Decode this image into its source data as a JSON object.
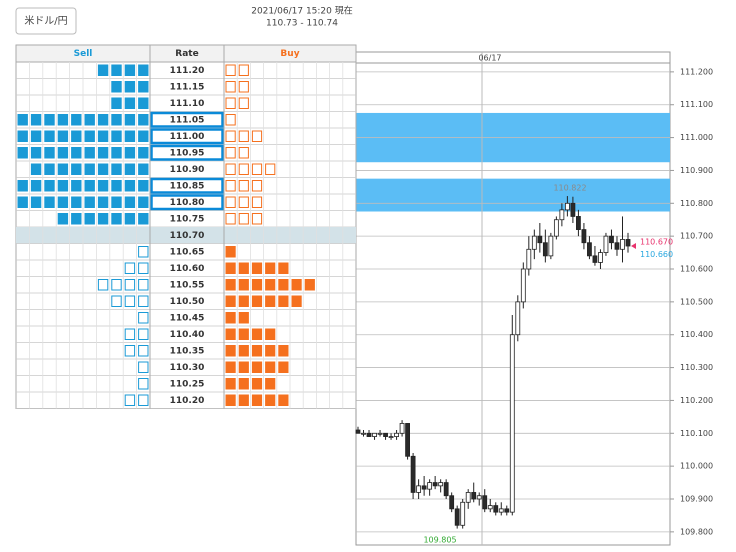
{
  "button": "米ドル/円",
  "header": {
    "timestamp": "2021/06/17 15:20 現在",
    "quote": "110.73 - 110.74"
  },
  "table": {
    "columns": [
      "Sell",
      "Rate",
      "Buy"
    ],
    "sell_color": "#1a9ad6",
    "buy_color": "#f5701e",
    "highlight_color": "#0a8ad8",
    "current_color": "#d3e2e8",
    "rows": [
      {
        "rate": "111.20",
        "sell": 4,
        "buy": 2,
        "highlight": false,
        "current": false
      },
      {
        "rate": "111.15",
        "sell": 3,
        "buy": 2,
        "highlight": false,
        "current": false
      },
      {
        "rate": "111.10",
        "sell": 3,
        "buy": 2,
        "highlight": false,
        "current": false
      },
      {
        "rate": "111.05",
        "sell": 10,
        "buy": 1,
        "highlight": true,
        "current": false
      },
      {
        "rate": "111.00",
        "sell": 10,
        "buy": 3,
        "highlight": true,
        "current": false
      },
      {
        "rate": "110.95",
        "sell": 10,
        "buy": 2,
        "highlight": true,
        "current": false
      },
      {
        "rate": "110.90",
        "sell": 9,
        "buy": 4,
        "highlight": false,
        "current": false
      },
      {
        "rate": "110.85",
        "sell": 10,
        "buy": 3,
        "highlight": true,
        "current": false
      },
      {
        "rate": "110.80",
        "sell": 10,
        "buy": 3,
        "highlight": true,
        "current": false
      },
      {
        "rate": "110.75",
        "sell": 7,
        "buy": 3,
        "highlight": false,
        "current": false
      },
      {
        "rate": "110.70",
        "sell": 0,
        "buy": 0,
        "highlight": false,
        "current": true
      },
      {
        "rate": "110.65",
        "sell": 1,
        "buy": 1,
        "highlight": false,
        "current": false
      },
      {
        "rate": "110.60",
        "sell": 2,
        "buy": 5,
        "highlight": false,
        "current": false
      },
      {
        "rate": "110.55",
        "sell": 4,
        "buy": 7,
        "highlight": false,
        "current": false
      },
      {
        "rate": "110.50",
        "sell": 3,
        "buy": 6,
        "highlight": false,
        "current": false
      },
      {
        "rate": "110.45",
        "sell": 1,
        "buy": 2,
        "highlight": false,
        "current": false
      },
      {
        "rate": "110.40",
        "sell": 2,
        "buy": 4,
        "highlight": false,
        "current": false
      },
      {
        "rate": "110.35",
        "sell": 2,
        "buy": 5,
        "highlight": false,
        "current": false
      },
      {
        "rate": "110.30",
        "sell": 1,
        "buy": 5,
        "highlight": false,
        "current": false
      },
      {
        "rate": "110.25",
        "sell": 1,
        "buy": 4,
        "highlight": false,
        "current": false
      },
      {
        "rate": "110.20",
        "sell": 2,
        "buy": 5,
        "highlight": false,
        "current": false
      }
    ]
  },
  "chart_data": {
    "type": "candlestick",
    "date_label": "06/17",
    "open": [
      110.11,
      110.1,
      110.1,
      110.09,
      110.1,
      110.1,
      110.09,
      110.09,
      110.1,
      110.13,
      110.03,
      109.92,
      109.94,
      109.93,
      109.95,
      109.94,
      109.95,
      109.91,
      109.87,
      109.82,
      109.89,
      109.92,
      109.9,
      109.91,
      109.87,
      109.88,
      109.86,
      109.87,
      109.86,
      110.4,
      110.5,
      110.6,
      110.66,
      110.7,
      110.68,
      110.64,
      110.7,
      110.75,
      110.78,
      110.8,
      110.76,
      110.72,
      110.68,
      110.64,
      110.62,
      110.65,
      110.7,
      110.68,
      110.66,
      110.69
    ],
    "high": [
      110.12,
      110.11,
      110.11,
      110.1,
      110.11,
      110.1,
      110.1,
      110.11,
      110.14,
      110.13,
      110.04,
      109.96,
      109.97,
      109.96,
      109.97,
      109.96,
      109.96,
      109.92,
      109.88,
      109.9,
      109.93,
      109.95,
      109.92,
      109.93,
      109.9,
      109.89,
      109.89,
      109.88,
      110.46,
      110.52,
      110.62,
      110.7,
      110.72,
      110.74,
      110.72,
      110.71,
      110.76,
      110.8,
      110.822,
      110.82,
      110.78,
      110.74,
      110.7,
      110.67,
      110.66,
      110.71,
      110.72,
      110.7,
      110.76,
      110.71
    ],
    "low": [
      110.1,
      110.09,
      110.09,
      110.08,
      110.09,
      110.08,
      110.08,
      110.08,
      110.09,
      110.02,
      109.9,
      109.9,
      109.91,
      109.91,
      109.93,
      109.92,
      109.9,
      109.86,
      109.81,
      109.81,
      109.87,
      109.89,
      109.88,
      109.86,
      109.86,
      109.85,
      109.85,
      109.85,
      109.85,
      110.38,
      110.48,
      110.58,
      110.63,
      110.65,
      110.62,
      110.63,
      110.69,
      110.73,
      110.76,
      110.74,
      110.7,
      110.66,
      110.63,
      110.61,
      110.6,
      110.64,
      110.66,
      110.64,
      110.62,
      110.65
    ],
    "close": [
      110.1,
      110.1,
      110.09,
      110.1,
      110.1,
      110.09,
      110.09,
      110.1,
      110.13,
      110.03,
      109.92,
      109.94,
      109.93,
      109.95,
      109.94,
      109.95,
      109.91,
      109.87,
      109.82,
      109.89,
      109.92,
      109.9,
      109.91,
      109.87,
      109.88,
      109.86,
      109.87,
      109.86,
      110.4,
      110.5,
      110.6,
      110.66,
      110.7,
      110.68,
      110.64,
      110.7,
      110.75,
      110.78,
      110.8,
      110.76,
      110.72,
      110.68,
      110.64,
      110.62,
      110.65,
      110.7,
      110.68,
      110.66,
      110.69,
      110.67
    ],
    "up_color": "#ffffff",
    "down_color": "#2a2a2a",
    "ylim": [
      109.76,
      111.227
    ],
    "yticks": [
      {
        "value": 111.2,
        "label": "111.200"
      },
      {
        "value": 111.1,
        "label": "111.100"
      },
      {
        "value": 111.0,
        "label": "111.000"
      },
      {
        "value": 110.9,
        "label": "110.900"
      },
      {
        "value": 110.8,
        "label": "110.800"
      },
      {
        "value": 110.7,
        "label": "110.700"
      },
      {
        "value": 110.6,
        "label": "110.600"
      },
      {
        "value": 110.5,
        "label": "110.500"
      },
      {
        "value": 110.4,
        "label": "110.400"
      },
      {
        "value": 110.3,
        "label": "110.300"
      },
      {
        "value": 110.2,
        "label": "110.200"
      },
      {
        "value": 110.1,
        "label": "110.100"
      },
      {
        "value": 110.0,
        "label": "110.000"
      },
      {
        "value": 109.9,
        "label": "109.900"
      },
      {
        "value": 109.8,
        "label": "109.800"
      }
    ],
    "grid": true,
    "band_color": "#5bbdf5",
    "bands": [
      {
        "from": 111.075,
        "to": 110.925
      },
      {
        "from": 110.875,
        "to": 110.775
      }
    ],
    "annotations": [
      {
        "text": "110.822",
        "value": 110.822,
        "color": "#8a8a8a"
      },
      {
        "text": "110.670",
        "value": 110.67,
        "color": "#e8336d"
      },
      {
        "text": "110.660",
        "value": 110.66,
        "color": "#2aa8e0"
      },
      {
        "text": "109.805",
        "value": 109.805,
        "color": "#33aa33"
      }
    ]
  }
}
